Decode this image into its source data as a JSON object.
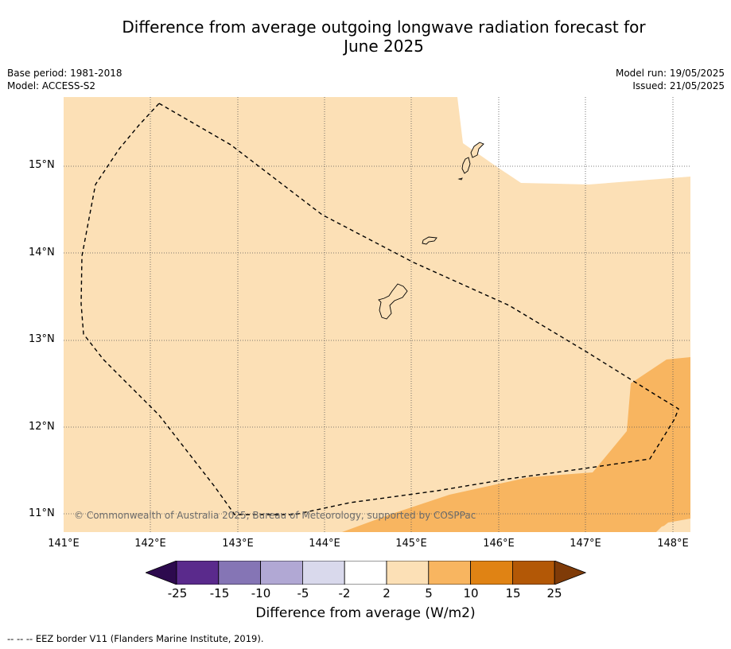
{
  "title_line1": "Difference from average outgoing longwave radiation forecast for",
  "title_line2": "June 2025",
  "meta_left": {
    "base_period": "Base period: 1981-2018",
    "model": "Model: ACCESS-S2"
  },
  "meta_right": {
    "model_run": "Model run: 19/05/2025",
    "issued": "Issued: 21/05/2025"
  },
  "lat_labels": [
    "15°N",
    "14°N",
    "13°N",
    "12°N",
    "11°N"
  ],
  "lon_labels": [
    "141°E",
    "142°E",
    "143°E",
    "144°E",
    "145°E",
    "146°E",
    "147°E",
    "148°E"
  ],
  "copyright": "© Commonwealth of Australia 2025, Bureau of Meteorology, supported by COSPPac",
  "colorbar": {
    "label": "Difference from average (W/m2)",
    "ticks": [
      "-25",
      "-15",
      "-10",
      "-5",
      "-2",
      "2",
      "5",
      "10",
      "15",
      "25"
    ],
    "colors": [
      "#2d0a4e",
      "#5a2a8c",
      "#8575b5",
      "#b1a8d4",
      "#d9d9ec",
      "#ffffff",
      "#fce0b6",
      "#f8b560",
      "#e08314",
      "#b35806",
      "#7f3b08"
    ]
  },
  "footnote": "--  --  -- EEZ border V11 (Flanders Marine Institute, 2019).",
  "map_colors": {
    "class_2_5": "#fce0b6",
    "class_5_10": "#f8b560",
    "no_data": "#ffffff"
  }
}
